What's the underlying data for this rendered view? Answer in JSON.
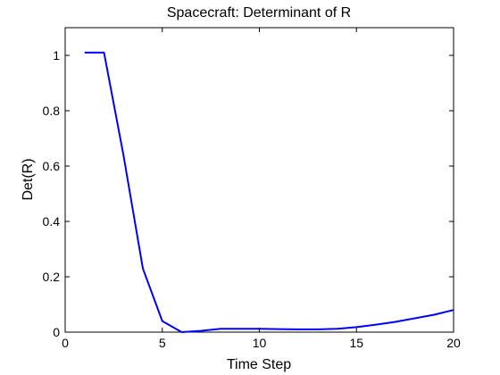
{
  "chart_data": {
    "type": "line",
    "title": "Spacecraft: Determinant of R",
    "xlabel": "Time Step",
    "ylabel": "Det(R)",
    "xlim": [
      0,
      20
    ],
    "ylim": [
      0,
      1.1
    ],
    "xticks": [
      0,
      5,
      10,
      15,
      20
    ],
    "yticks": [
      0,
      0.2,
      0.4,
      0.6,
      0.8,
      1
    ],
    "ytick_labels": [
      "0",
      "0.2",
      "0.4",
      "0.6",
      "0.8",
      "1"
    ],
    "grid": false,
    "series": [
      {
        "color": "#0000ff",
        "x": [
          1,
          2,
          3,
          4,
          5,
          6,
          7,
          8,
          9,
          10,
          11,
          12,
          13,
          14,
          15,
          16,
          17,
          18,
          19,
          20
        ],
        "y": [
          1.01,
          1.01,
          0.64,
          0.23,
          0.04,
          0.0,
          0.005,
          0.012,
          0.012,
          0.012,
          0.011,
          0.01,
          0.01,
          0.012,
          0.018,
          0.027,
          0.037,
          0.05,
          0.063,
          0.08
        ]
      }
    ]
  }
}
